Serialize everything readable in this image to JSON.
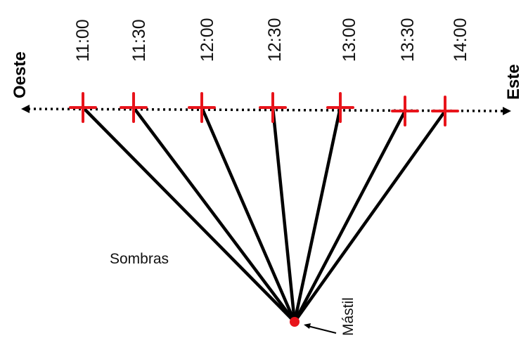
{
  "diagram": {
    "west_label": "Oeste",
    "east_label": "Este",
    "shadows_label": "Sombras",
    "mast_label": "Mástil",
    "times": [
      "11:00",
      "11:30",
      "12:00",
      "12:30",
      "13:00",
      "13:30",
      "14:00"
    ],
    "colors": {
      "marker": "#e8141b",
      "mast": "#e8141b",
      "shadow_line": "#000000",
      "axis": "#000000"
    }
  }
}
